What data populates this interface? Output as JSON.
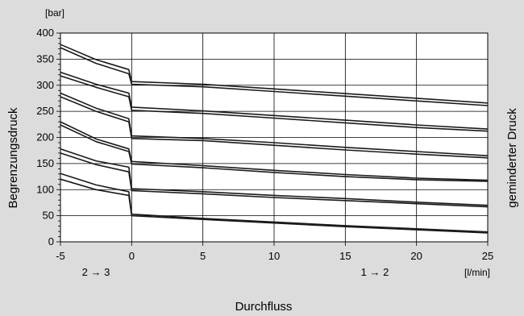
{
  "chart_data": {
    "type": "line",
    "xlabel": "Durchfluss",
    "ylabel": "Begrenzungsdruck",
    "ylabel_right": "geminderter Druck",
    "x_unit": "[l/min]",
    "y_unit": "[bar]",
    "xlim": [
      -5,
      25
    ],
    "ylim": [
      0,
      400
    ],
    "x_ticks": [
      -5,
      0,
      5,
      10,
      15,
      20,
      25
    ],
    "y_ticks": [
      0,
      50,
      100,
      150,
      200,
      250,
      300,
      350,
      400
    ],
    "grid": true,
    "annotations": [
      {
        "text": "2 → 3",
        "x": -2.5
      },
      {
        "text": "1 → 2",
        "x": 17.5
      }
    ],
    "series": [
      {
        "x": [
          -5,
          -2.5,
          -0.2,
          0,
          5,
          10,
          15,
          20,
          25
        ],
        "y": [
          378,
          349,
          330,
          307,
          302,
          293,
          284,
          275,
          266
        ]
      },
      {
        "x": [
          -5,
          -2.5,
          -0.2,
          0,
          5,
          10,
          15,
          20,
          25
        ],
        "y": [
          372,
          342,
          322,
          302,
          297,
          288,
          279,
          270,
          261
        ]
      },
      {
        "x": [
          -5,
          -2.5,
          -0.2,
          0,
          5,
          10,
          15,
          20,
          25
        ],
        "y": [
          325,
          302,
          285,
          258,
          251,
          242,
          233,
          224,
          216
        ]
      },
      {
        "x": [
          -5,
          -2.5,
          -0.2,
          0,
          5,
          10,
          15,
          20,
          25
        ],
        "y": [
          318,
          296,
          278,
          252,
          246,
          237,
          228,
          219,
          212
        ]
      },
      {
        "x": [
          -5,
          -2.5,
          -0.2,
          0,
          5,
          10,
          15,
          20,
          25
        ],
        "y": [
          285,
          256,
          236,
          203,
          198,
          190,
          181,
          173,
          165
        ]
      },
      {
        "x": [
          -5,
          -2.5,
          -0.2,
          0,
          5,
          10,
          15,
          20,
          25
        ],
        "y": [
          278,
          250,
          230,
          198,
          194,
          185,
          176,
          168,
          161
        ]
      },
      {
        "x": [
          -5,
          -2.5,
          -0.2,
          0,
          5,
          10,
          15,
          20,
          25
        ],
        "y": [
          230,
          197,
          178,
          154,
          146,
          137,
          129,
          122,
          118
        ]
      },
      {
        "x": [
          -5,
          -2.5,
          -0.2,
          0,
          5,
          10,
          15,
          20,
          25
        ],
        "y": [
          224,
          192,
          173,
          149,
          142,
          133,
          125,
          119,
          116
        ]
      },
      {
        "x": [
          -5,
          -2.5,
          -0.2,
          0,
          5,
          10,
          15,
          20,
          25
        ],
        "y": [
          178,
          155,
          143,
          102,
          96,
          89,
          83,
          76,
          70
        ]
      },
      {
        "x": [
          -5,
          -2.5,
          -0.2,
          0,
          5,
          10,
          15,
          20,
          25
        ],
        "y": [
          170,
          148,
          134,
          98,
          92,
          85,
          79,
          73,
          67
        ]
      },
      {
        "x": [
          -5,
          -2.5,
          -0.2,
          0,
          5,
          10,
          15,
          20,
          25
        ],
        "y": [
          131,
          109,
          96,
          53,
          45,
          38,
          31,
          25,
          19
        ]
      },
      {
        "x": [
          -5,
          -2.5,
          -0.2,
          0,
          5,
          10,
          15,
          20,
          25
        ],
        "y": [
          120,
          100,
          89,
          50,
          43,
          36,
          29,
          23,
          17
        ]
      }
    ]
  }
}
